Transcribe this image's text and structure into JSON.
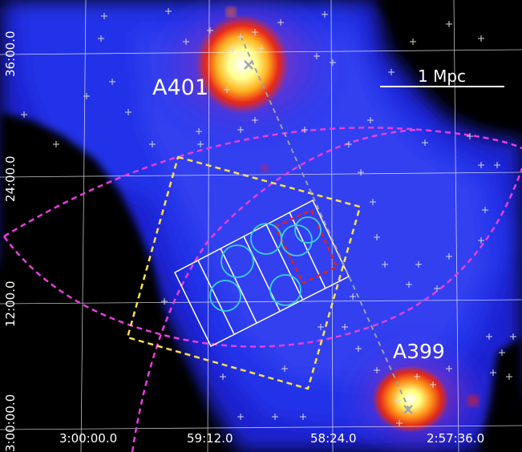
{
  "labels": {
    "cluster_a": "A401",
    "cluster_b": "A399",
    "scale_bar": "1 Mpc"
  },
  "axes": {
    "ra_ticks": [
      "3:00:00.0",
      "59:12.0",
      "58:24.0",
      "2:57:36.0"
    ],
    "dec_ticks": [
      "36:00.0",
      "24:00.0",
      "12:00.0",
      "3:00:00.0"
    ]
  },
  "colors": {
    "background": "#000000",
    "emission_low": "#1a22d8",
    "emission_mid": "#e8281a",
    "emission_core": "#ffffa8",
    "yellow_region": "#ffe14a",
    "magenta_region": "#e83ee0",
    "cyan_circles": "#38d0d8",
    "red_box": "#e02020",
    "grid": "#ffffff"
  }
}
